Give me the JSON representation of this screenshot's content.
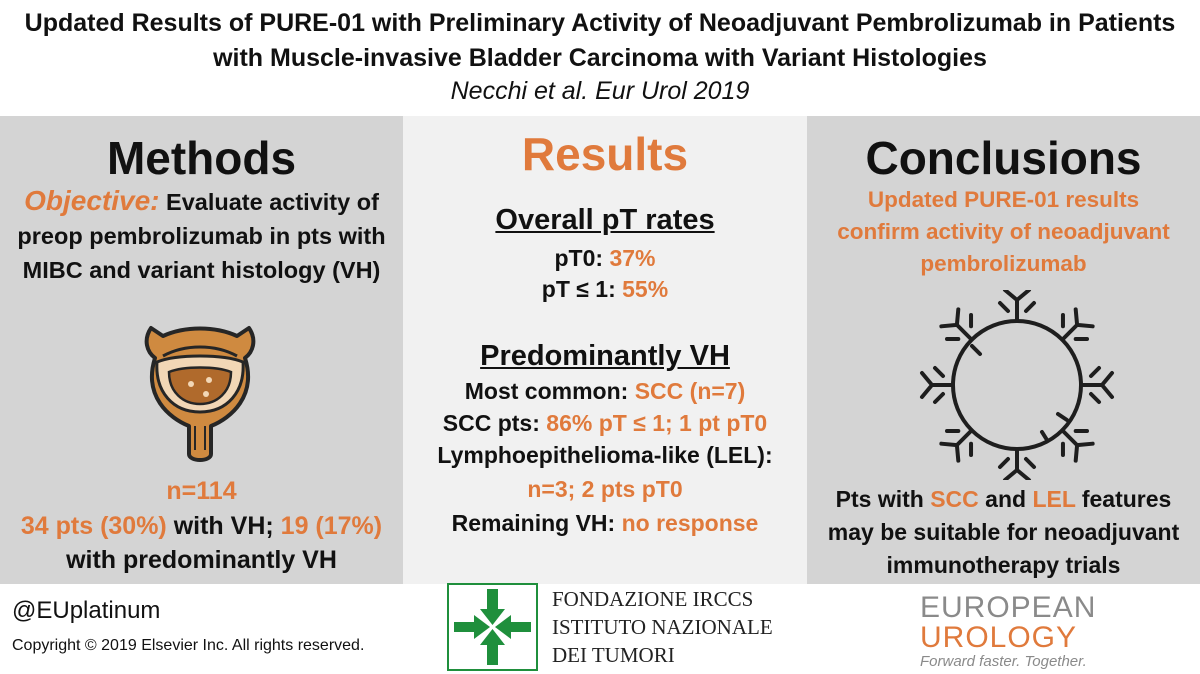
{
  "header": {
    "title": "Updated Results of PURE-01 with Preliminary Activity of Neoadjuvant Pembrolizumab in Patients with Muscle-invasive Bladder Carcinoma with Variant Histologies",
    "citation": "Necchi et al. Eur Urol 2019"
  },
  "methods": {
    "title": "Methods",
    "objective_label": "Objective:",
    "objective_text": "Evaluate activity of preop pembrolizumab in pts with MIBC and variant histology (VH)",
    "n": "n=114",
    "vh_count": "34 pts (30%)",
    "vh_count_suffix": "with VH;",
    "predominant_count": "19 (17%)",
    "predominant_suffix": "with predominantly VH"
  },
  "results": {
    "title": "Results",
    "overall_heading": "Overall pT rates",
    "pt0_label": "pT0:",
    "pt0_value": "37%",
    "pt1_label": "pT ≤ 1:",
    "pt1_value": "55%",
    "vh_heading": "Predominantly VH",
    "common_label": "Most common:",
    "common_value": "SCC (n=7)",
    "scc_label": "SCC pts:",
    "scc_value": "86% pT ≤ 1; 1 pt pT0",
    "lel_label": "Lymphoepithelioma-like (LEL):",
    "lel_value": "n=3; 2 pts pT0",
    "remaining_label": "Remaining VH:",
    "remaining_value": "no response"
  },
  "conclusions": {
    "title": "Conclusions",
    "highlight": "Updated PURE-01 results confirm activity of neoadjuvant pembrolizumab",
    "text_1": "Pts with",
    "scc": "SCC",
    "text_and": "and",
    "lel": "LEL",
    "text_2": "features may be suitable for neoadjuvant immunotherapy trials"
  },
  "footer": {
    "handle": "@EUplatinum",
    "copyright": "Copyright © 2019 Elsevier Inc. All rights reserved.",
    "irccs_line1": "FONDAZIONE IRCCS",
    "irccs_line2": "ISTITUTO NAZIONALE",
    "irccs_line3": "DEI TUMORI",
    "eu_line1": "EUROPEAN",
    "eu_line2": "UROLOGY",
    "eu_tagline": "Forward faster. Together."
  },
  "colors": {
    "accent": "#e07a3c",
    "panel_dark": "#d4d4d4",
    "panel_light": "#f1f1f1",
    "irccs_green": "#1f8f3c"
  },
  "icons": [
    "bladder-icon",
    "antibody-ring-icon",
    "irccs-arrows-icon"
  ]
}
